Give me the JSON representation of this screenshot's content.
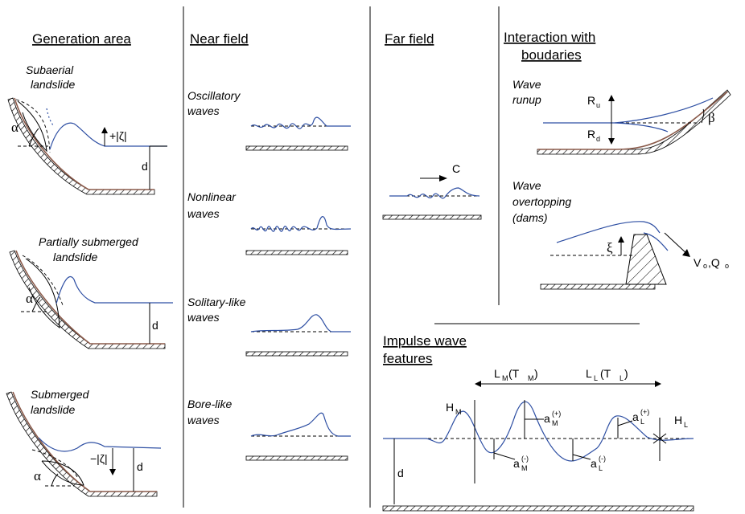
{
  "headers": {
    "generation": "Generation area",
    "near": "Near field",
    "far": "Far field",
    "interaction_1": "Interaction with",
    "interaction_2": "boudaries",
    "impulse_1": "Impulse wave",
    "impulse_2": "features"
  },
  "generation": {
    "subaerial_1": "Subaerial",
    "subaerial_2": "landslide",
    "partial_1": "Partially submerged",
    "partial_2": "landslide",
    "submerged_1": "Submerged",
    "submerged_2": "landslide",
    "alpha": "α",
    "depth": "d",
    "zeta_pos": "+|ζ|",
    "zeta_neg": "−|ζ|"
  },
  "near_field": {
    "oscillatory_1": "Oscillatory",
    "oscillatory_2": "waves",
    "nonlinear_1": "Nonlinear",
    "nonlinear_2": "waves",
    "solitary_1": "Solitary-like",
    "solitary_2": "waves",
    "bore_1": "Bore-like",
    "bore_2": "waves"
  },
  "far_field": {
    "celerity": "C"
  },
  "interaction": {
    "runup_1": "Wave",
    "runup_2": "runup",
    "overtop_1": "Wave",
    "overtop_2": "overtopping",
    "overtop_3": "(dams)",
    "R": "R",
    "u": "u",
    "d": "d",
    "beta": "β",
    "xi": "ξ",
    "V": "V",
    "o": "o",
    "Q": ",Q"
  },
  "impulse": {
    "LM": "L",
    "M": "M",
    "TM_open": " (T",
    "TM_close": ")",
    "LL": "L",
    "L": "L",
    "TL_open": " (T",
    "TL_close": " )",
    "H": "H",
    "a": "a",
    "plus": "(+)",
    "minus": "(-)",
    "depth": "d"
  }
}
